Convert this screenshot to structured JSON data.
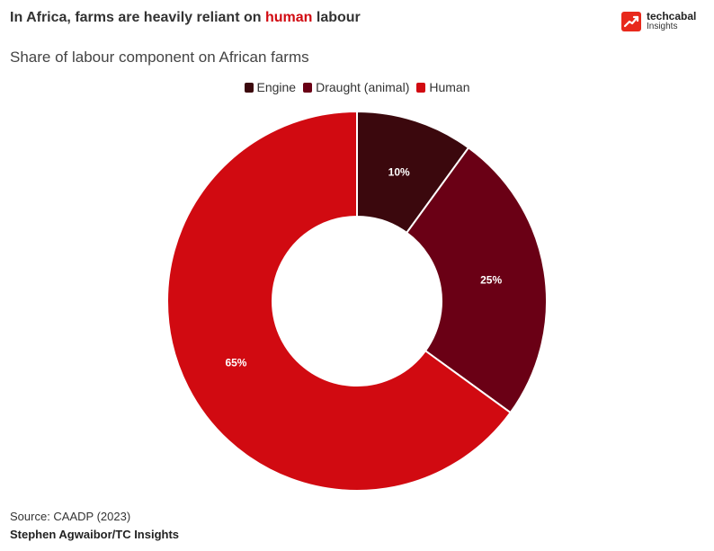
{
  "header": {
    "title_before": "In Africa, farms are heavily reliant on ",
    "title_highlight": "human",
    "title_after": " labour",
    "subtitle": "Share of labour component on African farms"
  },
  "brand": {
    "name": "techcabal",
    "sub": "Insights",
    "icon": "trend-arrow-icon",
    "color": "#e8291c"
  },
  "chart_data": {
    "type": "pie",
    "variant": "donut",
    "title": "Share of labour component on African farms",
    "legend_position": "top-center",
    "categories": [
      "Engine",
      "Draught (animal)",
      "Human"
    ],
    "values": [
      10,
      25,
      65
    ],
    "labels": [
      "10%",
      "25%",
      "65%"
    ],
    "colors": [
      "#3b080d",
      "#6a0015",
      "#d10a11"
    ],
    "unit": "%"
  },
  "footer": {
    "source": "Source: CAADP (2023)",
    "author": "Stephen Agwaibor/TC Insights"
  }
}
